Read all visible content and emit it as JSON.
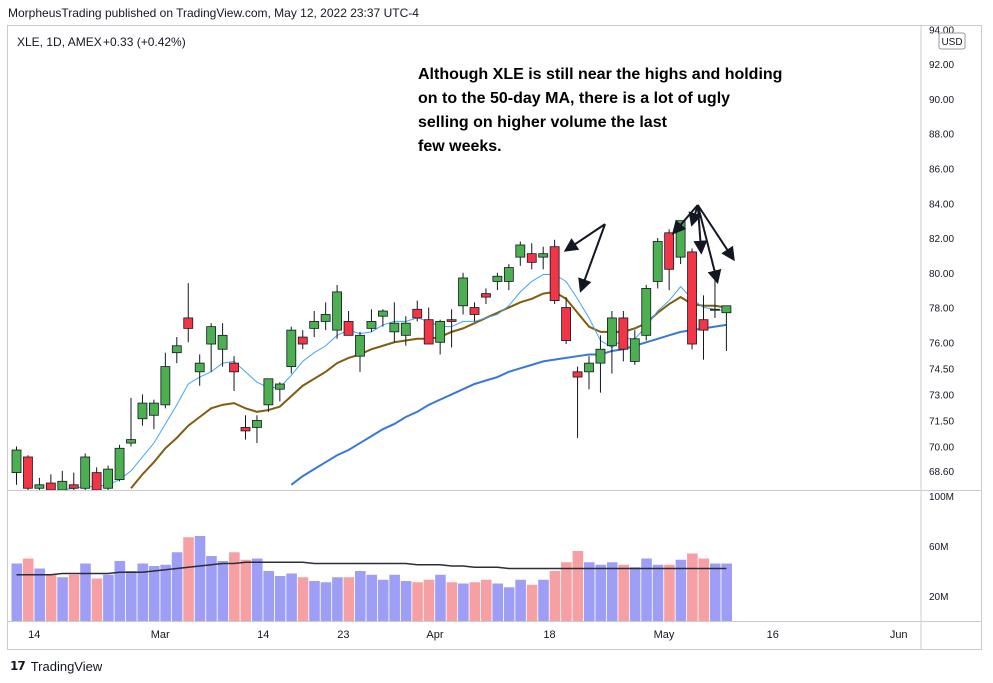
{
  "header": {
    "published": "MorpheusTrading published on TradingView.com, May 12, 2022 23:37 UTC-4"
  },
  "legend": {
    "symbol": "XLE, 1D, AMEX",
    "change": "+0.33 (+0.42%)"
  },
  "footer": {
    "brand": "TradingView",
    "logo_icon": "tradingview-logo-icon"
  },
  "annotation": {
    "lines": [
      "Although XLE is still near the highs and holding",
      "on to the 50-day MA, there is a lot of ugly",
      "selling on higher volume the last",
      "few weeks."
    ]
  },
  "colors": {
    "up": "#4caf50",
    "down": "#f23645",
    "ma_fast": "#42a5f5",
    "ma_mid": "#7f5f0f",
    "ma_slow": "#3a78d6",
    "vol_up": "#9e9ef6",
    "vol_down": "#f7a0a4",
    "vol_ma": "#2a2e39"
  },
  "chart_data": {
    "type": "candlestick",
    "currency_badge": "USD",
    "price_axis": {
      "range": [
        67.5,
        94.2
      ],
      "ticks": [
        "94.00",
        "92.00",
        "90.00",
        "88.00",
        "86.00",
        "84.00",
        "82.00",
        "80.00",
        "78.00",
        "76.00",
        "74.50",
        "73.00",
        "71.50",
        "70.00",
        "68.60"
      ]
    },
    "volume_axis": {
      "range": [
        0,
        100
      ],
      "ticks": [
        "100M",
        "60M",
        "20M"
      ]
    },
    "x_ticks": [
      {
        "label": "14",
        "index": 0.5
      },
      {
        "label": "Mar",
        "index": 11.5
      },
      {
        "label": "14",
        "index": 20.5
      },
      {
        "label": "23",
        "index": 27.5
      },
      {
        "label": "Apr",
        "index": 35.5
      },
      {
        "label": "18",
        "index": 45.5
      },
      {
        "label": "May",
        "index": 55.5
      },
      {
        "label": "16",
        "index": 65
      },
      {
        "label": "Jun",
        "index": 76
      }
    ],
    "candles": [
      {
        "o": 68.5,
        "h": 70.0,
        "l": 67.8,
        "c": 69.8
      },
      {
        "o": 69.4,
        "h": 69.5,
        "l": 67.5,
        "c": 67.6
      },
      {
        "o": 67.6,
        "h": 68.2,
        "l": 66.8,
        "c": 67.8
      },
      {
        "o": 67.9,
        "h": 68.4,
        "l": 67.0,
        "c": 67.2
      },
      {
        "o": 67.4,
        "h": 68.6,
        "l": 67.0,
        "c": 68.0
      },
      {
        "o": 67.8,
        "h": 68.5,
        "l": 67.0,
        "c": 67.6
      },
      {
        "o": 67.6,
        "h": 69.6,
        "l": 67.2,
        "c": 69.4
      },
      {
        "o": 68.5,
        "h": 68.8,
        "l": 67.2,
        "c": 67.4
      },
      {
        "o": 67.6,
        "h": 68.9,
        "l": 67.2,
        "c": 68.7
      },
      {
        "o": 68.1,
        "h": 70.1,
        "l": 68.0,
        "c": 69.9
      },
      {
        "o": 70.2,
        "h": 72.8,
        "l": 70.0,
        "c": 70.4
      },
      {
        "o": 71.6,
        "h": 73.0,
        "l": 71.2,
        "c": 72.5
      },
      {
        "o": 71.8,
        "h": 72.7,
        "l": 71.0,
        "c": 72.5
      },
      {
        "o": 72.4,
        "h": 75.4,
        "l": 72.2,
        "c": 74.6
      },
      {
        "o": 75.4,
        "h": 76.3,
        "l": 74.8,
        "c": 75.8
      },
      {
        "o": 77.4,
        "h": 79.4,
        "l": 76.0,
        "c": 76.8
      },
      {
        "o": 74.3,
        "h": 75.3,
        "l": 73.5,
        "c": 74.8
      },
      {
        "o": 75.9,
        "h": 77.1,
        "l": 74.3,
        "c": 76.9
      },
      {
        "o": 75.6,
        "h": 77.1,
        "l": 74.6,
        "c": 76.4
      },
      {
        "o": 74.8,
        "h": 75.2,
        "l": 73.2,
        "c": 74.3
      },
      {
        "o": 71.1,
        "h": 71.8,
        "l": 70.4,
        "c": 70.9
      },
      {
        "o": 71.1,
        "h": 71.8,
        "l": 70.2,
        "c": 71.5
      },
      {
        "o": 72.4,
        "h": 73.8,
        "l": 72.0,
        "c": 73.9
      },
      {
        "o": 73.3,
        "h": 73.7,
        "l": 72.6,
        "c": 73.6
      },
      {
        "o": 74.6,
        "h": 76.9,
        "l": 74.2,
        "c": 76.7
      },
      {
        "o": 76.3,
        "h": 76.7,
        "l": 75.6,
        "c": 75.9
      },
      {
        "o": 76.8,
        "h": 77.8,
        "l": 76.3,
        "c": 77.2
      },
      {
        "o": 77.2,
        "h": 78.3,
        "l": 76.7,
        "c": 77.6
      },
      {
        "o": 76.7,
        "h": 79.3,
        "l": 76.2,
        "c": 78.9
      },
      {
        "o": 77.2,
        "h": 77.8,
        "l": 76.5,
        "c": 76.4
      },
      {
        "o": 75.2,
        "h": 76.6,
        "l": 74.3,
        "c": 76.4
      },
      {
        "o": 76.8,
        "h": 77.9,
        "l": 76.6,
        "c": 77.2
      },
      {
        "o": 77.5,
        "h": 77.9,
        "l": 76.9,
        "c": 77.8
      },
      {
        "o": 76.6,
        "h": 78.3,
        "l": 76.0,
        "c": 77.1
      },
      {
        "o": 76.4,
        "h": 77.5,
        "l": 75.8,
        "c": 77.1
      },
      {
        "o": 77.9,
        "h": 78.4,
        "l": 77.2,
        "c": 77.4
      },
      {
        "o": 77.3,
        "h": 78.0,
        "l": 75.9,
        "c": 75.9
      },
      {
        "o": 76.0,
        "h": 77.3,
        "l": 75.3,
        "c": 77.2
      },
      {
        "o": 77.3,
        "h": 77.9,
        "l": 75.7,
        "c": 77.2
      },
      {
        "o": 78.1,
        "h": 80.0,
        "l": 77.6,
        "c": 79.7
      },
      {
        "o": 78.0,
        "h": 78.3,
        "l": 77.2,
        "c": 77.6
      },
      {
        "o": 78.8,
        "h": 79.1,
        "l": 78.2,
        "c": 78.6
      },
      {
        "o": 79.5,
        "h": 80.0,
        "l": 79.0,
        "c": 79.8
      },
      {
        "o": 79.5,
        "h": 80.5,
        "l": 79.0,
        "c": 80.3
      },
      {
        "o": 80.9,
        "h": 81.8,
        "l": 80.4,
        "c": 81.6
      },
      {
        "o": 81.1,
        "h": 81.7,
        "l": 80.2,
        "c": 80.6
      },
      {
        "o": 80.9,
        "h": 81.5,
        "l": 80.2,
        "c": 81.1
      },
      {
        "o": 81.5,
        "h": 81.9,
        "l": 78.2,
        "c": 78.4
      },
      {
        "o": 78.0,
        "h": 78.6,
        "l": 75.9,
        "c": 76.1
      },
      {
        "o": 74.3,
        "h": 74.6,
        "l": 70.5,
        "c": 74.0
      },
      {
        "o": 74.3,
        "h": 75.2,
        "l": 73.3,
        "c": 74.8
      },
      {
        "o": 74.8,
        "h": 76.4,
        "l": 73.1,
        "c": 75.6
      },
      {
        "o": 75.8,
        "h": 77.8,
        "l": 74.2,
        "c": 77.4
      },
      {
        "o": 77.4,
        "h": 77.8,
        "l": 74.9,
        "c": 75.6
      },
      {
        "o": 74.9,
        "h": 76.7,
        "l": 74.7,
        "c": 76.2
      },
      {
        "o": 76.4,
        "h": 79.3,
        "l": 76.1,
        "c": 79.1
      },
      {
        "o": 79.5,
        "h": 82.0,
        "l": 79.1,
        "c": 81.8
      },
      {
        "o": 82.3,
        "h": 82.5,
        "l": 79.0,
        "c": 80.2
      },
      {
        "o": 80.9,
        "h": 83.0,
        "l": 80.5,
        "c": 83.0
      },
      {
        "o": 81.2,
        "h": 81.4,
        "l": 75.6,
        "c": 75.9
      },
      {
        "o": 77.3,
        "h": 78.7,
        "l": 75.0,
        "c": 76.7
      },
      {
        "o": 77.9,
        "h": 80.2,
        "l": 77.4,
        "c": 77.9
      },
      {
        "o": 77.7,
        "h": 78.1,
        "l": 75.5,
        "c": 78.1
      }
    ],
    "volume": [
      46,
      50,
      42,
      37,
      35,
      37,
      46,
      34,
      37,
      48,
      40,
      46,
      44,
      45,
      55,
      67,
      68,
      52,
      48,
      55,
      49,
      50,
      40,
      36,
      38,
      35,
      32,
      31,
      35,
      35,
      40,
      37,
      33,
      37,
      32,
      31,
      33,
      37,
      31,
      30,
      31,
      33,
      30,
      27,
      33,
      29,
      33,
      40,
      47,
      56,
      47,
      45,
      47,
      45,
      43,
      50,
      45,
      45,
      49,
      54,
      50,
      46,
      46
    ],
    "ma_fast": [
      67.2,
      67.3,
      67.3,
      67.4,
      67.5,
      67.6,
      67.7,
      67.7,
      67.8,
      68.1,
      68.6,
      69.4,
      70.2,
      71.3,
      72.4,
      73.6,
      74.0,
      74.3,
      74.8,
      74.9,
      74.3,
      73.7,
      73.4,
      73.4,
      74.1,
      74.9,
      75.4,
      75.8,
      76.4,
      76.7,
      76.5,
      76.6,
      77.0,
      77.2,
      77.2,
      77.4,
      77.2,
      76.9,
      76.9,
      77.2,
      77.2,
      77.4,
      77.6,
      78.1,
      78.9,
      79.5,
      79.9,
      79.9,
      79.5,
      78.5,
      77.4,
      76.1,
      75.7,
      76.2,
      76.2,
      76.9,
      77.8,
      78.4,
      79.2,
      78.5,
      78.0,
      77.9,
      77.8
    ],
    "ma_mid": [
      63.5,
      64.0,
      64.5,
      64.9,
      65.2,
      65.5,
      65.9,
      66.2,
      66.5,
      67.0,
      67.6,
      68.4,
      69.1,
      69.9,
      70.5,
      71.2,
      71.7,
      72.2,
      72.4,
      72.5,
      72.2,
      72.0,
      72.1,
      72.3,
      72.9,
      73.5,
      73.9,
      74.3,
      74.8,
      75.1,
      75.3,
      75.6,
      75.8,
      76.0,
      76.1,
      76.2,
      76.2,
      76.3,
      76.6,
      76.8,
      77.1,
      77.4,
      77.7,
      78.0,
      78.3,
      78.5,
      78.8,
      78.9,
      78.5,
      77.7,
      76.9,
      76.6,
      76.6,
      76.6,
      76.8,
      77.1,
      77.7,
      78.2,
      78.6,
      78.2,
      78.1,
      78.1,
      78.0
    ],
    "ma_slow": [
      60.8,
      61.0,
      61.1,
      61.3,
      61.5,
      61.6,
      61.8,
      62.0,
      62.2,
      62.5,
      62.7,
      63.0,
      63.3,
      63.6,
      64.0,
      64.4,
      64.8,
      65.1,
      65.5,
      65.9,
      66.2,
      66.6,
      67.0,
      67.4,
      67.8,
      68.3,
      68.7,
      69.1,
      69.5,
      69.8,
      70.2,
      70.6,
      71.0,
      71.3,
      71.7,
      72.0,
      72.4,
      72.7,
      73.0,
      73.3,
      73.6,
      73.8,
      74.0,
      74.3,
      74.5,
      74.7,
      74.9,
      75.0,
      75.1,
      75.2,
      75.3,
      75.3,
      75.5,
      75.6,
      75.8,
      76.0,
      76.2,
      76.4,
      76.6,
      76.7,
      76.8,
      76.9,
      77.0
    ],
    "vol_ma": [
      37,
      37,
      37,
      37,
      38,
      38,
      38,
      38,
      38,
      39,
      39,
      39,
      40,
      41,
      42,
      43,
      44,
      45,
      46,
      46,
      47,
      47,
      47,
      47,
      47,
      47,
      46,
      46,
      46,
      46,
      46,
      46,
      46,
      46,
      46,
      45,
      45,
      45,
      44,
      44,
      43,
      43,
      43,
      42,
      42,
      42,
      42,
      42,
      42,
      42,
      42,
      42,
      42,
      42,
      42,
      42,
      42,
      42,
      42,
      42,
      42,
      42,
      42
    ],
    "arrows": [
      {
        "from": [
          59.5,
          83.9
        ],
        "to": [
          57.4,
          82.3
        ]
      },
      {
        "from": [
          59.5,
          83.9
        ],
        "to": [
          59.0,
          82.8
        ]
      },
      {
        "from": [
          59.5,
          83.9
        ],
        "to": [
          59.8,
          81.2
        ]
      },
      {
        "from": [
          59.5,
          83.9
        ],
        "to": [
          61.2,
          79.5
        ]
      },
      {
        "from": [
          59.5,
          83.9
        ],
        "to": [
          62.6,
          80.8
        ]
      },
      {
        "from": [
          51.4,
          82.8
        ],
        "to": [
          48.0,
          81.3
        ]
      },
      {
        "from": [
          51.4,
          82.8
        ],
        "to": [
          49.3,
          79.0
        ]
      }
    ]
  }
}
